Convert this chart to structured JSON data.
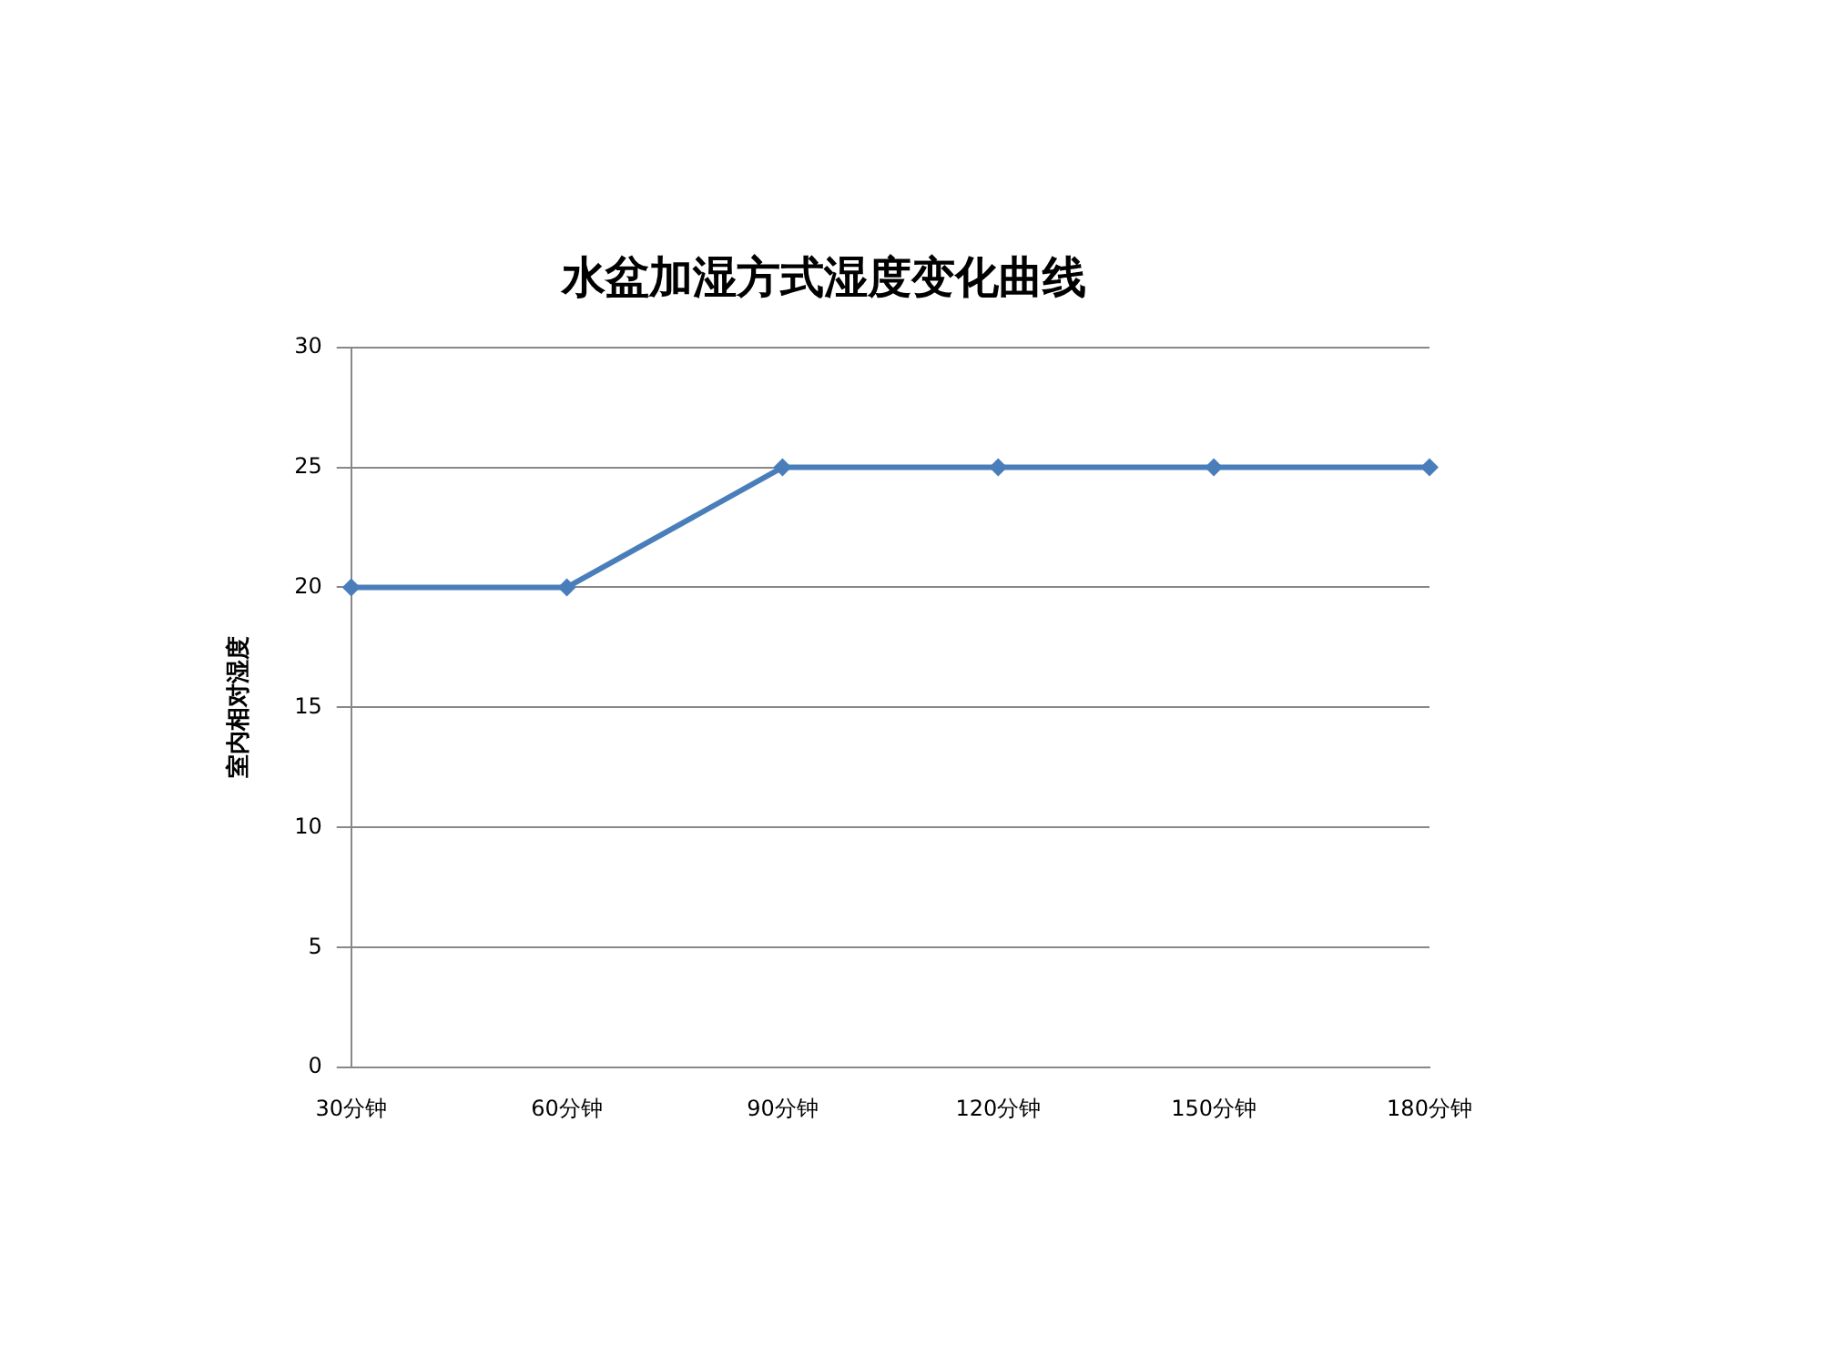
{
  "chart_data": {
    "type": "line",
    "title": "水盆加湿方式湿度变化曲线",
    "ylabel": "室内相对湿度",
    "categories": [
      "30分钟",
      "60分钟",
      "90分钟",
      "120分钟",
      "150分钟",
      "180分钟"
    ],
    "series": [
      {
        "color": "#4a7ebb",
        "values": [
          20,
          20,
          25,
          25,
          25,
          25
        ]
      }
    ],
    "ylim": [
      0,
      30
    ],
    "yticks": [
      0,
      5,
      10,
      15,
      20,
      25,
      30
    ],
    "grid": "y",
    "legend": false,
    "marker": "diamond",
    "line_style": "solid"
  }
}
